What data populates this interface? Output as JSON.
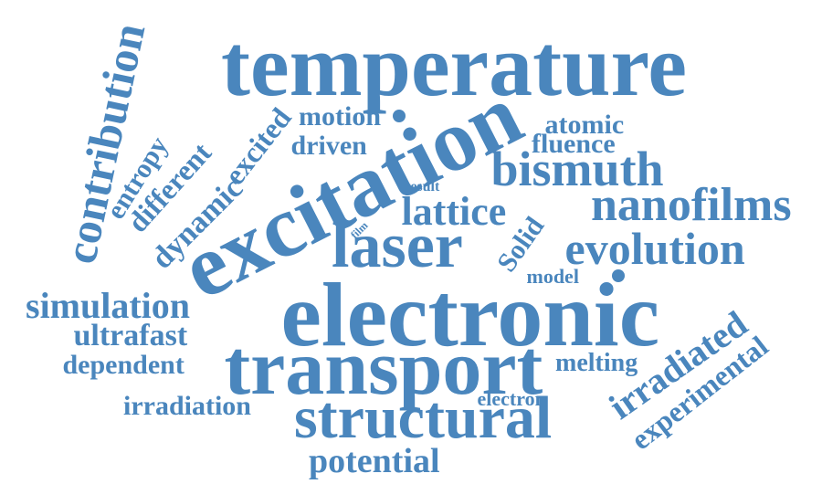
{
  "cloud": {
    "color": "#4a86bd",
    "words": [
      "temperature",
      "electronic",
      "excitation",
      "transport",
      "structural",
      "laser",
      "bismuth",
      "nanofilms",
      "evolution",
      "lattice",
      "contribution",
      "simulation",
      "irradiated",
      "experimental",
      "ultrafast",
      "dependent",
      "irradiation",
      "potential",
      "dynamic",
      "different",
      "excited",
      "entropy",
      "motion",
      "driven",
      "atomic",
      "fluence",
      "Solid",
      "model",
      "melting",
      "electron",
      "result",
      "film"
    ]
  }
}
